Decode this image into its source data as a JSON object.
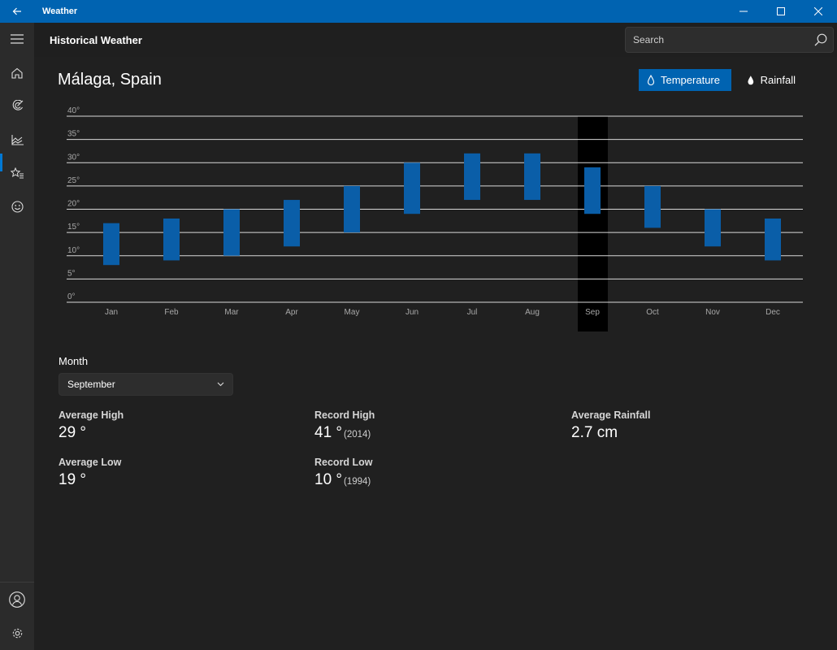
{
  "window": {
    "title": "Weather",
    "controls": [
      "minimize-icon",
      "maximize-icon",
      "close-icon"
    ]
  },
  "header": {
    "title": "Historical Weather",
    "search_placeholder": "Search"
  },
  "nav": {
    "items": [
      "menu-icon",
      "home-icon",
      "radar-icon",
      "historical-chart-icon",
      "favorites-icon",
      "smiley-icon"
    ],
    "bottom": [
      "account-icon",
      "settings-icon"
    ],
    "active": "historical-chart-icon"
  },
  "location": "Málaga, Spain",
  "toggles": {
    "temperature": "Temperature",
    "rainfall": "Rainfall",
    "selected": "temperature"
  },
  "colors": {
    "accent": "#0063b1",
    "bar": "#0a5ea8",
    "highlight": "#000000"
  },
  "chart_data": {
    "type": "bar",
    "bar_style": "floating-range",
    "categories": [
      "Jan",
      "Feb",
      "Mar",
      "Apr",
      "May",
      "Jun",
      "Jul",
      "Aug",
      "Sep",
      "Oct",
      "Nov",
      "Dec"
    ],
    "series": [
      {
        "low": [
          8,
          9,
          10,
          12,
          15,
          19,
          22,
          22,
          19,
          16,
          12,
          9
        ],
        "high": [
          17,
          18,
          20,
          22,
          25,
          30,
          32,
          32,
          29,
          25,
          20,
          18
        ]
      }
    ],
    "y_ticks": [
      "0°",
      "5°",
      "10°",
      "15°",
      "20°",
      "25°",
      "30°",
      "35°",
      "40°"
    ],
    "ylim": [
      0,
      40
    ],
    "grid": true,
    "selected_category": "Sep"
  },
  "month": {
    "label": "Month",
    "selected": "September"
  },
  "stats": {
    "avg_high": {
      "label": "Average High",
      "value": "29 °"
    },
    "avg_low": {
      "label": "Average Low",
      "value": "19 °"
    },
    "record_high": {
      "label": "Record High",
      "value": "41 °",
      "year": "(2014)"
    },
    "record_low": {
      "label": "Record Low",
      "value": "10 °",
      "year": "(1994)"
    },
    "avg_rain": {
      "label": "Average Rainfall",
      "value": "2.7 cm"
    }
  }
}
